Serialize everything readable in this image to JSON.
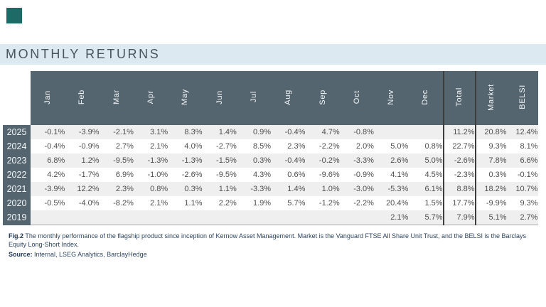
{
  "brand": {
    "square": "kernow-brand-mark"
  },
  "header": {
    "title": "MONTHLY RETURNS"
  },
  "colors": {
    "brand_square": "#1d6a66",
    "title_bar_bg": "#dde9f0",
    "title_text": "#47565f",
    "header_bg": "#546570",
    "header_text": "#f4f7f8",
    "stripe": "#efeff0",
    "cell_text": "#4e4e4e",
    "divider": "#3d3d3d",
    "caption_text": "#2e4560",
    "caption_bold": "#1c3553"
  },
  "table": {
    "month_columns": [
      "Jan",
      "Feb",
      "Mar",
      "Apr",
      "May",
      "Jun",
      "Jul",
      "Aug",
      "Sep",
      "Oct",
      "Nov",
      "Dec"
    ],
    "total_column": "Total",
    "compare_columns": [
      "Market",
      "BELSI"
    ],
    "rows": [
      {
        "year": "2025",
        "months": [
          "-0.1%",
          "-3.9%",
          "-2.1%",
          "3.1%",
          "8.3%",
          "1.4%",
          "0.9%",
          "-0.4%",
          "4.7%",
          "-0.8%",
          "",
          ""
        ],
        "total": "11.2%",
        "market": "20.8%",
        "belsi": "12.4%"
      },
      {
        "year": "2024",
        "months": [
          "-0.4%",
          "-0.9%",
          "2.7%",
          "2.1%",
          "4.0%",
          "-2.7%",
          "8.5%",
          "2.3%",
          "-2.2%",
          "2.0%",
          "5.0%",
          "0.8%"
        ],
        "total": "22.7%",
        "market": "9.3%",
        "belsi": "8.1%"
      },
      {
        "year": "2023",
        "months": [
          "6.8%",
          "1.2%",
          "-9.5%",
          "-1.3%",
          "-1.3%",
          "-1.5%",
          "0.3%",
          "-0.4%",
          "-0.2%",
          "-3.3%",
          "2.6%",
          "5.0%"
        ],
        "total": "-2.6%",
        "market": "7.8%",
        "belsi": "6.6%"
      },
      {
        "year": "2022",
        "months": [
          "4.2%",
          "-1.7%",
          "6.9%",
          "-1.0%",
          "-2.6%",
          "-9.5%",
          "4.3%",
          "0.6%",
          "-9.6%",
          "-0.9%",
          "4.1%",
          "4.5%"
        ],
        "total": "-2.3%",
        "market": "0.3%",
        "belsi": "-0.1%"
      },
      {
        "year": "2021",
        "months": [
          "-3.9%",
          "12.2%",
          "2.3%",
          "0.8%",
          "0.3%",
          "1.1%",
          "-3.3%",
          "1.4%",
          "1.0%",
          "-3.0%",
          "-5.3%",
          "6.1%"
        ],
        "total": "8.8%",
        "market": "18.2%",
        "belsi": "10.7%"
      },
      {
        "year": "2020",
        "months": [
          "-0.5%",
          "-4.0%",
          "-8.2%",
          "2.1%",
          "1.1%",
          "2.2%",
          "1.9%",
          "5.7%",
          "-1.2%",
          "-2.2%",
          "20.4%",
          "1.5%"
        ],
        "total": "17.7%",
        "market": "-9.9%",
        "belsi": "9.3%"
      },
      {
        "year": "2019",
        "months": [
          "",
          "",
          "",
          "",
          "",
          "",
          "",
          "",
          "",
          "",
          "2.1%",
          "5.7%"
        ],
        "total": "7.9%",
        "market": "5.1%",
        "belsi": "2.7%"
      }
    ]
  },
  "caption": {
    "fig_label": "Fig.2",
    "fig_text": "The monthly performance of the flagship product since inception of Kernow Asset Management. Market is the Vanguard FTSE All Share Unit Trust, and the BELSI is the Barclays Equity Long-Short Index.",
    "source_label": "Source:",
    "source_text": "Internal, LSEG Analytics, BarclayHedge"
  }
}
